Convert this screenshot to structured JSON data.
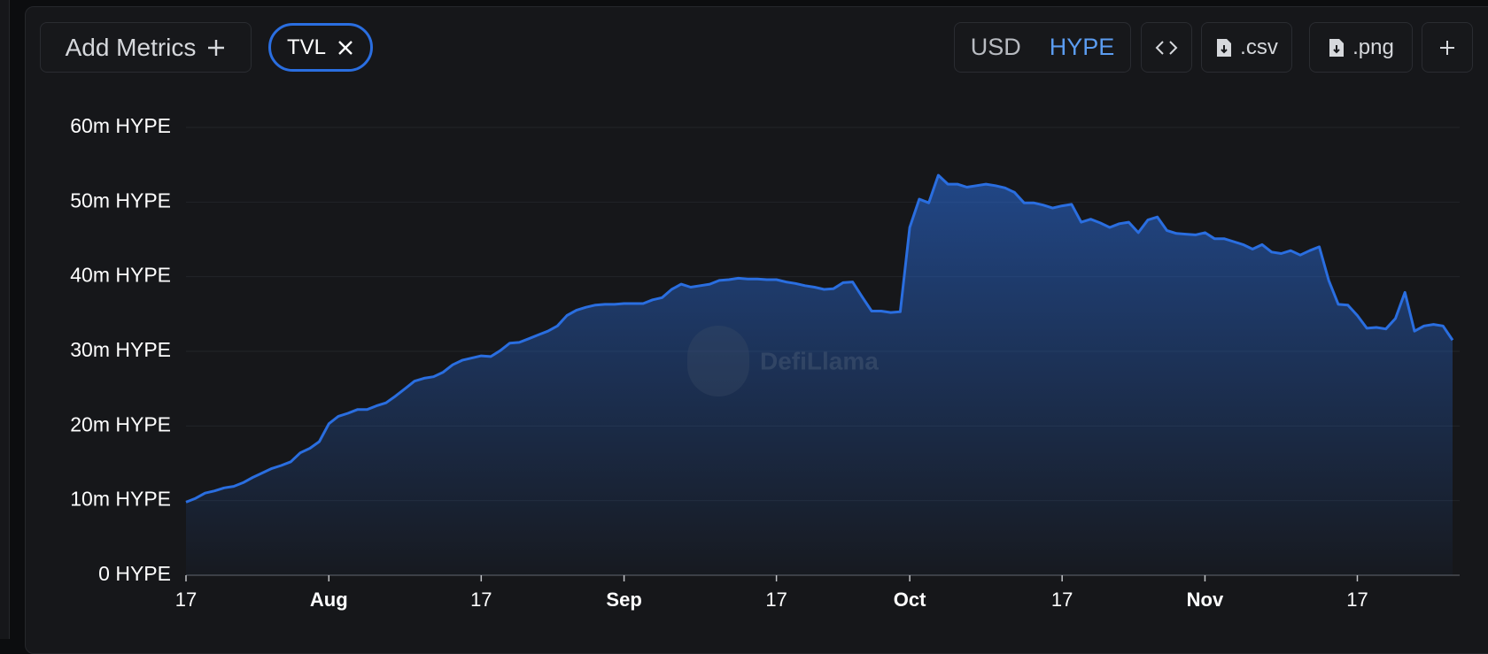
{
  "toolbar": {
    "add_metrics": "Add Metrics",
    "metric": "TVL",
    "currencies": [
      "USD",
      "HYPE"
    ],
    "active_currency": "HYPE",
    "csv": ".csv",
    "png": ".png"
  },
  "chart_data": {
    "type": "area",
    "watermark": "DefiLlama",
    "color": "#2a6ee0",
    "grid": true,
    "x": [
      "07-17",
      "07-18",
      "07-19",
      "07-20",
      "07-21",
      "07-22",
      "07-23",
      "07-24",
      "07-25",
      "07-26",
      "07-27",
      "07-28",
      "07-29",
      "07-30",
      "07-31",
      "08-01",
      "08-02",
      "08-03",
      "08-04",
      "08-05",
      "08-06",
      "08-07",
      "08-08",
      "08-09",
      "08-10",
      "08-11",
      "08-12",
      "08-13",
      "08-14",
      "08-15",
      "08-16",
      "08-17",
      "08-18",
      "08-19",
      "08-20",
      "08-21",
      "08-22",
      "08-23",
      "08-24",
      "08-25",
      "08-26",
      "08-27",
      "08-28",
      "08-29",
      "08-30",
      "08-31",
      "09-01",
      "09-02",
      "09-03",
      "09-04",
      "09-05",
      "09-06",
      "09-07",
      "09-08",
      "09-09",
      "09-10",
      "09-11",
      "09-12",
      "09-13",
      "09-14",
      "09-15",
      "09-16",
      "09-17",
      "09-18",
      "09-19",
      "09-20",
      "09-21",
      "09-22",
      "09-23",
      "09-24",
      "09-25",
      "09-26",
      "09-27",
      "09-28",
      "09-29",
      "09-30",
      "10-01",
      "10-02",
      "10-03",
      "10-04",
      "10-05",
      "10-06",
      "10-07",
      "10-08",
      "10-09",
      "10-10",
      "10-11",
      "10-12",
      "10-13",
      "10-14",
      "10-15",
      "10-16",
      "10-17",
      "10-18",
      "10-19",
      "10-20",
      "10-21",
      "10-22",
      "10-23",
      "10-24",
      "10-25",
      "10-26",
      "10-27",
      "10-28",
      "10-29",
      "10-30",
      "10-31",
      "11-01",
      "11-02",
      "11-03",
      "11-04",
      "11-05",
      "11-06",
      "11-07",
      "11-08",
      "11-09",
      "11-10",
      "11-11",
      "11-12",
      "11-13",
      "11-14",
      "11-15",
      "11-16",
      "11-17",
      "11-18",
      "11-19",
      "11-20",
      "11-21",
      "11-22",
      "11-23",
      "11-24",
      "11-25",
      "11-26",
      "11-27"
    ],
    "values": [
      9800000,
      10300000,
      11000000,
      11300000,
      11700000,
      11900000,
      12400000,
      13100000,
      13700000,
      14300000,
      14700000,
      15200000,
      16400000,
      17000000,
      17900000,
      20300000,
      21300000,
      21700000,
      22200000,
      22200000,
      22700000,
      23100000,
      24000000,
      25000000,
      26000000,
      26400000,
      26600000,
      27200000,
      28200000,
      28800000,
      29100000,
      29400000,
      29300000,
      30100000,
      31100000,
      31200000,
      31700000,
      32200000,
      32700000,
      33400000,
      34800000,
      35500000,
      35900000,
      36200000,
      36300000,
      36300000,
      36400000,
      36400000,
      36400000,
      36900000,
      37200000,
      38300000,
      39000000,
      38600000,
      38800000,
      39000000,
      39500000,
      39600000,
      39800000,
      39700000,
      39700000,
      39600000,
      39600000,
      39300000,
      39100000,
      38800000,
      38600000,
      38300000,
      38400000,
      39200000,
      39300000,
      37300000,
      35400000,
      35400000,
      35200000,
      35300000,
      46600000,
      50400000,
      49900000,
      53600000,
      52400000,
      52400000,
      52000000,
      52200000,
      52400000,
      52200000,
      51900000,
      51300000,
      49900000,
      49900000,
      49600000,
      49200000,
      49500000,
      49700000,
      47300000,
      47700000,
      47200000,
      46600000,
      47100000,
      47300000,
      45900000,
      47600000,
      48000000,
      46200000,
      45800000,
      45700000,
      45600000,
      45900000,
      45100000,
      45100000,
      44700000,
      44300000,
      43700000,
      44300000,
      43300000,
      43100000,
      43500000,
      42900000,
      43500000,
      44000000,
      39500000,
      36300000,
      36200000,
      34800000,
      33100000,
      33200000,
      33000000,
      34400000,
      37900000,
      32700000,
      33400000,
      33600000,
      33400000,
      31500000
    ],
    "xlim": [
      "07-17",
      "11-27"
    ],
    "xticks": [
      {
        "value": "07-17",
        "label": "17"
      },
      {
        "value": "08-01",
        "label": "Aug"
      },
      {
        "value": "08-17",
        "label": "17"
      },
      {
        "value": "09-01",
        "label": "Sep"
      },
      {
        "value": "09-17",
        "label": "17"
      },
      {
        "value": "10-01",
        "label": "Oct"
      },
      {
        "value": "10-17",
        "label": "17"
      },
      {
        "value": "11-01",
        "label": "Nov"
      },
      {
        "value": "11-17",
        "label": "17"
      }
    ],
    "ylim": [
      0,
      60000000
    ],
    "yticks": [
      {
        "value": 0,
        "label": "0 HYPE"
      },
      {
        "value": 10000000,
        "label": "10m HYPE"
      },
      {
        "value": 20000000,
        "label": "20m HYPE"
      },
      {
        "value": 30000000,
        "label": "30m HYPE"
      },
      {
        "value": 40000000,
        "label": "40m HYPE"
      },
      {
        "value": 50000000,
        "label": "50m HYPE"
      },
      {
        "value": 60000000,
        "label": "60m HYPE"
      }
    ]
  }
}
